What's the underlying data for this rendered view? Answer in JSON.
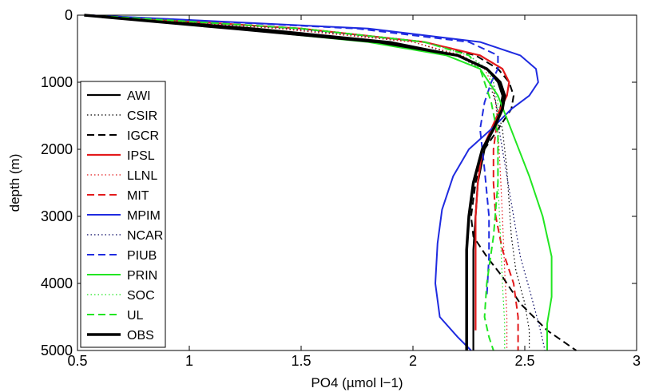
{
  "chart_data": {
    "type": "line",
    "xlabel": "PO4 (µmol l−1)",
    "ylabel": "depth (m)",
    "xlim": [
      0.5,
      3
    ],
    "ylim": [
      5000,
      0
    ],
    "y_reversed": true,
    "xticks": [
      "0.5",
      "1",
      "1.5",
      "2",
      "2.5",
      "3"
    ],
    "yticks": [
      "0",
      "1000",
      "2000",
      "3000",
      "4000",
      "5000"
    ],
    "legend_position": "left",
    "grid": false,
    "series": [
      {
        "name": "AWI",
        "color": "#000000",
        "style": "solid",
        "width": 2.2,
        "x": [
          0.55,
          1.3,
          1.9,
          2.2,
          2.33,
          2.38,
          2.4,
          2.39,
          2.36,
          2.32,
          2.29,
          2.28,
          2.27,
          2.27,
          2.27
        ],
        "y": [
          0,
          200,
          400,
          600,
          800,
          1000,
          1200,
          1400,
          1700,
          2000,
          2500,
          3000,
          3500,
          4500,
          5000
        ]
      },
      {
        "name": "CSIR",
        "color": "#000000",
        "style": "dotted",
        "width": 1.2,
        "x": [
          0.55,
          1.4,
          2.0,
          2.2,
          2.3,
          2.34,
          2.37,
          2.4,
          2.42,
          2.43,
          2.44,
          2.46,
          2.5,
          2.52,
          2.52
        ],
        "y": [
          0,
          200,
          400,
          600,
          800,
          1000,
          1300,
          1700,
          2300,
          2800,
          3300,
          3800,
          4300,
          4700,
          5000
        ]
      },
      {
        "name": "IGCR",
        "color": "#000000",
        "style": "dashed",
        "width": 2,
        "x": [
          0.55,
          1.5,
          2.05,
          2.28,
          2.38,
          2.43,
          2.45,
          2.44,
          2.38,
          2.32,
          2.28,
          2.26,
          2.27,
          2.33,
          2.4,
          2.48,
          2.6,
          2.73
        ],
        "y": [
          0,
          200,
          400,
          600,
          800,
          1000,
          1200,
          1400,
          1700,
          2000,
          2500,
          3000,
          3300,
          3600,
          3900,
          4300,
          4700,
          5000
        ]
      },
      {
        "name": "IPSL",
        "color": "#e31a1c",
        "style": "solid",
        "width": 2.2,
        "x": [
          0.55,
          1.5,
          2.05,
          2.3,
          2.4,
          2.43,
          2.42,
          2.39,
          2.35,
          2.31,
          2.29,
          2.28,
          2.28,
          2.28,
          2.28
        ],
        "y": [
          0,
          200,
          400,
          600,
          800,
          1000,
          1200,
          1400,
          1700,
          2000,
          2500,
          3000,
          3500,
          4200,
          4700
        ]
      },
      {
        "name": "LLNL",
        "color": "#e31a1c",
        "style": "dotted",
        "width": 1.2,
        "x": [
          0.55,
          1.4,
          2.0,
          2.22,
          2.32,
          2.35,
          2.37,
          2.38,
          2.39,
          2.4,
          2.41,
          2.42,
          2.42
        ],
        "y": [
          0,
          200,
          400,
          600,
          800,
          1000,
          1300,
          1700,
          2300,
          3000,
          3800,
          4500,
          5000
        ]
      },
      {
        "name": "MIT",
        "color": "#e31a1c",
        "style": "dashed",
        "width": 2,
        "x": [
          0.55,
          1.5,
          2.05,
          2.3,
          2.4,
          2.43,
          2.42,
          2.38,
          2.36,
          2.36,
          2.37,
          2.4,
          2.45,
          2.47,
          2.47
        ],
        "y": [
          0,
          200,
          400,
          600,
          800,
          1000,
          1200,
          1500,
          2000,
          2500,
          3000,
          3500,
          4000,
          4500,
          5000
        ]
      },
      {
        "name": "MPIM",
        "color": "#1f2be0",
        "style": "solid",
        "width": 2,
        "x": [
          0.55,
          1.8,
          2.3,
          2.48,
          2.55,
          2.56,
          2.52,
          2.44,
          2.35,
          2.25,
          2.18,
          2.13,
          2.11,
          2.1,
          2.12,
          2.2,
          2.26
        ],
        "y": [
          0,
          200,
          400,
          600,
          800,
          1000,
          1200,
          1400,
          1700,
          2000,
          2400,
          2900,
          3400,
          4000,
          4500,
          4800,
          5000
        ]
      },
      {
        "name": "NCAR",
        "color": "#000060",
        "style": "dotted",
        "width": 1.2,
        "x": [
          0.55,
          1.45,
          2.05,
          2.25,
          2.33,
          2.36,
          2.37,
          2.39,
          2.42,
          2.45,
          2.48,
          2.53,
          2.57,
          2.59
        ],
        "y": [
          0,
          200,
          400,
          600,
          800,
          1000,
          1300,
          1800,
          2400,
          3000,
          3600,
          4200,
          4700,
          5000
        ]
      },
      {
        "name": "PIUB",
        "color": "#1f2be0",
        "style": "dashed",
        "width": 2,
        "x": [
          0.55,
          1.75,
          2.25,
          2.38,
          2.38,
          2.35,
          2.32,
          2.3,
          2.32,
          2.34,
          2.34,
          2.33
        ],
        "y": [
          0,
          200,
          400,
          600,
          800,
          1000,
          1300,
          1700,
          2300,
          3000,
          3600,
          4200
        ]
      },
      {
        "name": "PRIN",
        "color": "#22e622",
        "style": "solid",
        "width": 2,
        "x": [
          0.55,
          1.2,
          1.8,
          2.15,
          2.3,
          2.38,
          2.45,
          2.52,
          2.58,
          2.62,
          2.62,
          2.6,
          2.6
        ],
        "y": [
          0,
          200,
          400,
          600,
          800,
          1200,
          1800,
          2400,
          3000,
          3600,
          4200,
          4600,
          5000
        ]
      },
      {
        "name": "SOC",
        "color": "#22e622",
        "style": "dotted",
        "width": 1.2,
        "x": [
          0.55,
          1.5,
          2.05,
          2.25,
          2.33,
          2.36,
          2.38,
          2.38,
          2.38,
          2.39,
          2.4,
          2.41,
          2.41
        ],
        "y": [
          0,
          200,
          400,
          600,
          800,
          1000,
          1300,
          1800,
          2500,
          3200,
          4000,
          4600,
          5000
        ]
      },
      {
        "name": "UL",
        "color": "#22e622",
        "style": "dashed",
        "width": 2,
        "x": [
          0.55,
          1.5,
          2.05,
          2.25,
          2.3,
          2.32,
          2.35,
          2.38,
          2.38,
          2.36,
          2.33,
          2.32,
          2.34,
          2.36
        ],
        "y": [
          0,
          200,
          400,
          600,
          800,
          1000,
          1300,
          1800,
          2500,
          3300,
          4000,
          4500,
          4800,
          5000
        ]
      },
      {
        "name": "OBS",
        "color": "#000000",
        "style": "solid",
        "width": 3.5,
        "x": [
          0.53,
          1.2,
          1.85,
          2.2,
          2.33,
          2.39,
          2.41,
          2.4,
          2.36,
          2.31,
          2.27,
          2.25,
          2.24,
          2.24,
          2.24
        ],
        "y": [
          0,
          200,
          400,
          600,
          800,
          1000,
          1200,
          1400,
          1700,
          2000,
          2500,
          3000,
          3500,
          4300,
          5000
        ]
      }
    ]
  }
}
